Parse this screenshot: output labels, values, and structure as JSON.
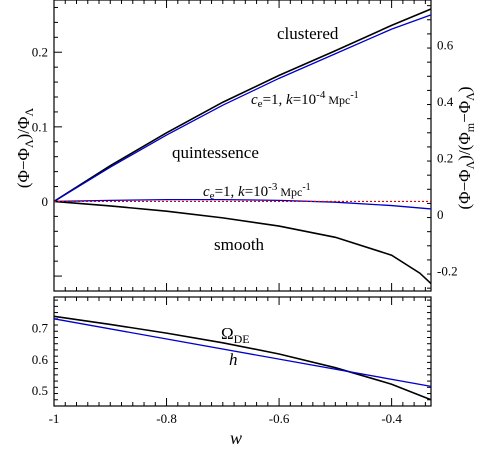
{
  "chart_data": [
    {
      "type": "line",
      "panel": "top",
      "x_range": [
        -1,
        -0.33
      ],
      "ylim_left": [
        -0.12,
        0.27
      ],
      "ylim_right": [
        -0.27,
        0.76
      ],
      "ylabel_left": "(Φ−Φ_Λ)/Φ_Λ",
      "ylabel_right": "(Φ−Φ_Λ)/(Φ_m−Φ_Λ)",
      "left_ticks": [
        "0",
        "0.1",
        "0.2"
      ],
      "right_ticks": [
        "-0.2",
        "0",
        "0.2",
        "0.4",
        "0.6"
      ],
      "series": [
        {
          "name": "clustered",
          "color": "#000000",
          "x": [
            -1,
            -0.9,
            -0.8,
            -0.7,
            -0.6,
            -0.5,
            -0.4,
            -0.33
          ],
          "y": [
            0,
            0.048,
            0.092,
            0.133,
            0.169,
            0.202,
            0.236,
            0.258
          ]
        },
        {
          "name": "quintessence",
          "label": "ce=1, k=10-4 Mpc-1",
          "color": "#0000cc",
          "x": [
            -1,
            -0.9,
            -0.8,
            -0.7,
            -0.6,
            -0.5,
            -0.4,
            -0.33
          ],
          "y": [
            0,
            0.046,
            0.089,
            0.129,
            0.165,
            0.198,
            0.231,
            0.25
          ]
        },
        {
          "name": "quintessence",
          "label": "ce=1, k=10-3 Mpc-1",
          "color": "#0000cc",
          "x": [
            -1,
            -0.9,
            -0.8,
            -0.7,
            -0.6,
            -0.5,
            -0.4,
            -0.33
          ],
          "y": [
            0,
            0.0015,
            0.0025,
            0.0025,
            0.0015,
            -0.001,
            -0.0055,
            -0.01
          ]
        },
        {
          "name": "smooth",
          "color": "#000000",
          "x": [
            -1,
            -0.9,
            -0.8,
            -0.7,
            -0.6,
            -0.5,
            -0.4,
            -0.35,
            -0.33
          ],
          "y": [
            0,
            -0.006,
            -0.013,
            -0.022,
            -0.033,
            -0.048,
            -0.072,
            -0.096,
            -0.11
          ]
        },
        {
          "name": "reference",
          "color": "#dd0000",
          "dashed": true,
          "x": [
            -1,
            -0.33
          ],
          "y": [
            0,
            0
          ]
        }
      ],
      "annotations": [
        {
          "text": "clustered",
          "color": "#000000"
        },
        {
          "text": "quintessence",
          "color": "#0000cc"
        },
        {
          "text": "smooth",
          "color": "#000000"
        },
        {
          "text_parts": [
            "c",
            "e",
            "=1, ",
            "k",
            "=10",
            "-4",
            " Mpc",
            "-1"
          ],
          "color": "#0000cc"
        },
        {
          "text_parts": [
            "c",
            "e",
            "=1, ",
            "k",
            "=10",
            "-3",
            " Mpc",
            "-1"
          ],
          "color": "#0000cc"
        }
      ]
    },
    {
      "type": "line",
      "panel": "bottom",
      "x_range": [
        -1,
        -0.33
      ],
      "ylim": [
        0.45,
        0.8
      ],
      "xlabel": "w",
      "y_ticks": [
        "0.5",
        "0.6",
        "0.7"
      ],
      "x_ticks": [
        "-1",
        "-0.8",
        "-0.6",
        "-0.4"
      ],
      "series": [
        {
          "name": "Ω_DE",
          "color": "#000000",
          "x": [
            -1,
            -0.9,
            -0.8,
            -0.7,
            -0.6,
            -0.5,
            -0.4,
            -0.33
          ],
          "y": [
            0.738,
            0.712,
            0.684,
            0.653,
            0.617,
            0.573,
            0.52,
            0.47
          ]
        },
        {
          "name": "h",
          "color": "#0000cc",
          "x": [
            -1,
            -0.33
          ],
          "y": [
            0.73,
            0.513
          ]
        }
      ],
      "annotations": [
        {
          "text_parts": [
            "Ω",
            "DE"
          ],
          "color": "#000000"
        },
        {
          "text": "h",
          "color": "#0000cc"
        }
      ]
    }
  ]
}
